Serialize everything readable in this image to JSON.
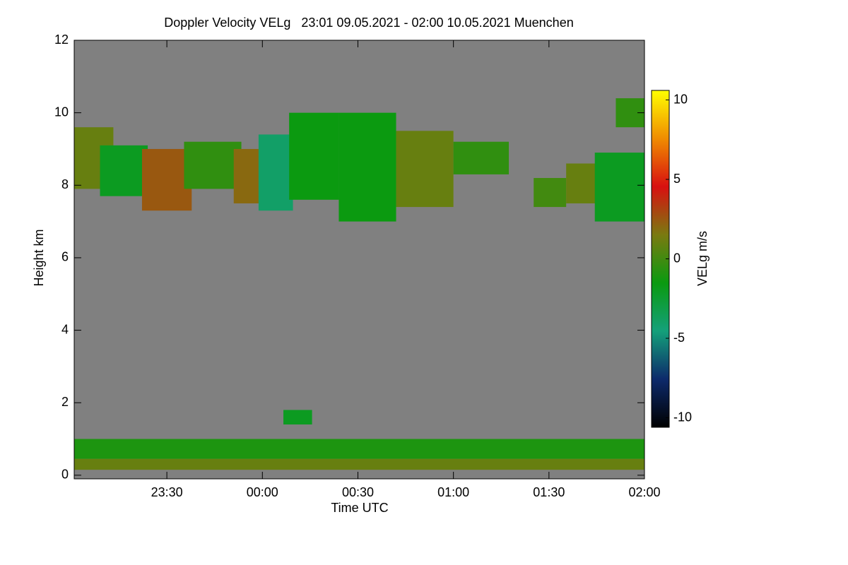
{
  "chart_data": {
    "type": "heatmap",
    "title": "Doppler Velocity VELg   23:01 09.05.2021 - 02:00 10.05.2021 Muenchen",
    "x_label": "Time UTC",
    "y_label": "Height km",
    "xlim": [
      -0.985,
      2.0
    ],
    "xticks": [
      {
        "value": -0.5,
        "label": "23:30"
      },
      {
        "value": 0,
        "label": "00:00"
      },
      {
        "value": 0.5,
        "label": "00:30"
      },
      {
        "value": 1,
        "label": "01:00"
      },
      {
        "value": 1.5,
        "label": "01:30"
      },
      {
        "value": 2,
        "label": "02:00"
      }
    ],
    "ylim": [
      -0.1,
      12
    ],
    "yticks": [
      0,
      2,
      4,
      6,
      8,
      10,
      12
    ],
    "background_color": "#808080",
    "colorbar": {
      "label": "VELg m/s",
      "lim": [
        -10.6,
        10.6
      ],
      "ticks": [
        -10,
        -5,
        0,
        5,
        10
      ],
      "colors": [
        "#000000",
        "#0d2a6b",
        "#14a07a",
        "#0a9a10",
        "#7a7a10",
        "#d81010",
        "#f08c00",
        "#ffff00"
      ]
    },
    "cells": [
      {
        "x": [
          -0.985,
          -0.78
        ],
        "y": [
          7.9,
          9.6
        ],
        "value": 1
      },
      {
        "x": [
          -0.85,
          -0.6
        ],
        "y": [
          7.7,
          9.1
        ],
        "value": -2
      },
      {
        "x": [
          -0.63,
          -0.37
        ],
        "y": [
          7.3,
          9.0
        ],
        "value": 2.5
      },
      {
        "x": [
          -0.41,
          -0.11
        ],
        "y": [
          7.9,
          9.2
        ],
        "value": -0.5
      },
      {
        "x": [
          -0.15,
          0
        ],
        "y": [
          7.5,
          9.0
        ],
        "value": 2
      },
      {
        "x": [
          -0.02,
          0.16
        ],
        "y": [
          7.3,
          9.4
        ],
        "value": -4
      },
      {
        "x": [
          0.14,
          0.4
        ],
        "y": [
          7.6,
          10.0
        ],
        "value": -1.5
      },
      {
        "x": [
          0.4,
          0.7
        ],
        "y": [
          7.0,
          10.0
        ],
        "value": -1.5
      },
      {
        "x": [
          0.7,
          1.0
        ],
        "y": [
          7.4,
          9.5
        ],
        "value": 1
      },
      {
        "x": [
          1.0,
          1.29
        ],
        "y": [
          8.3,
          9.2
        ],
        "value": -0.5
      },
      {
        "x": [
          1.42,
          1.59
        ],
        "y": [
          7.4,
          8.2
        ],
        "value": 0
      },
      {
        "x": [
          1.59,
          1.81
        ],
        "y": [
          7.5,
          8.6
        ],
        "value": 1
      },
      {
        "x": [
          1.74,
          2.0
        ],
        "y": [
          7.0,
          8.9
        ],
        "value": -2
      },
      {
        "x": [
          1.85,
          2.0
        ],
        "y": [
          9.6,
          10.4
        ],
        "value": -0.5
      },
      {
        "x": [
          0.11,
          0.26
        ],
        "y": [
          1.4,
          1.8
        ],
        "value": -2
      },
      {
        "x": [
          -0.985,
          2.0
        ],
        "y": [
          0.45,
          1.0
        ],
        "value": -1
      },
      {
        "x": [
          -0.985,
          2.0
        ],
        "y": [
          0.15,
          0.45
        ],
        "value": 1
      }
    ]
  }
}
